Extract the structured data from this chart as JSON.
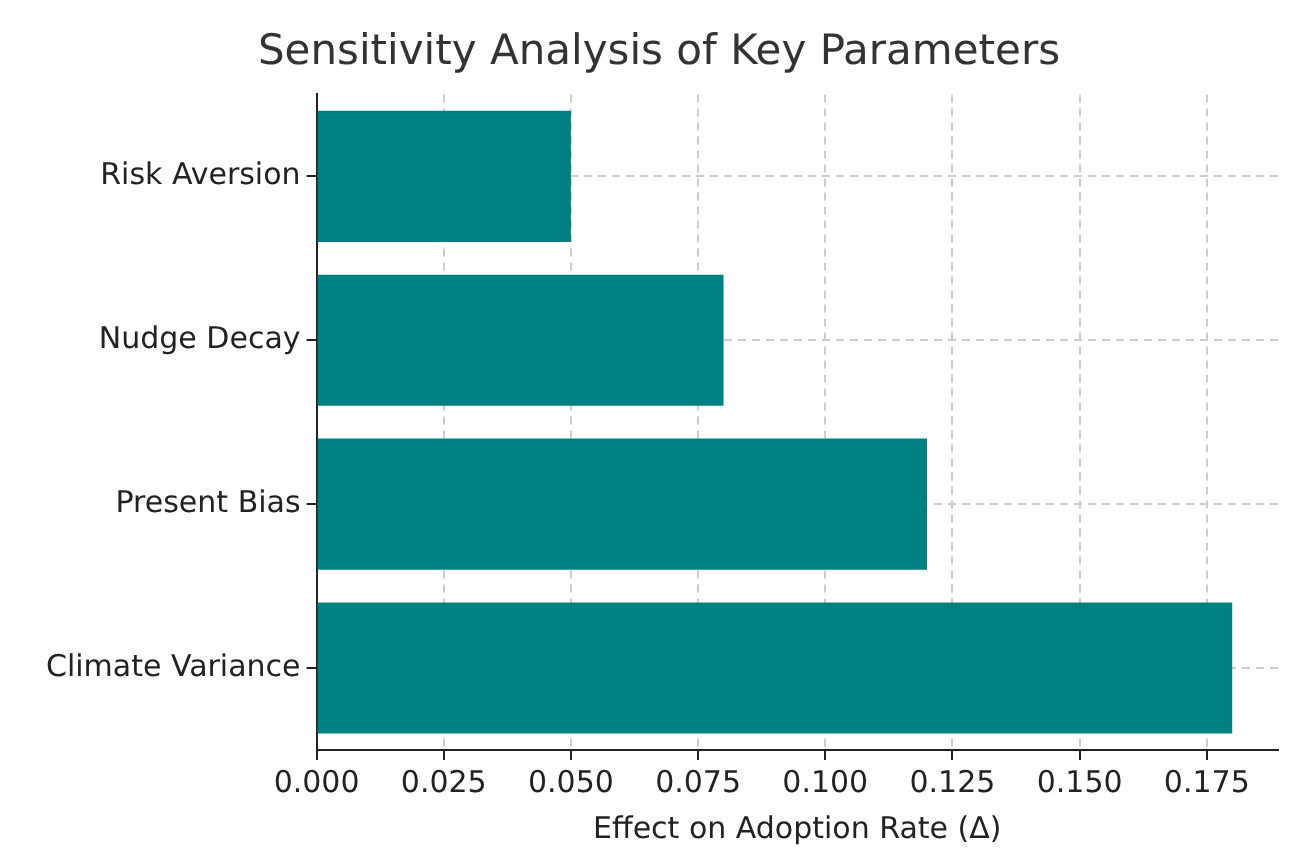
{
  "chart_data": {
    "type": "bar",
    "orientation": "horizontal",
    "title": "Sensitivity Analysis of Key Parameters",
    "xlabel": "Effect on Adoption Rate (Δ)",
    "categories": [
      "Risk Aversion",
      "Nudge Decay",
      "Present Bias",
      "Climate Variance"
    ],
    "values": [
      0.05,
      0.08,
      0.12,
      0.18
    ],
    "color": "#008080",
    "xlim": [
      0,
      0.189
    ],
    "xticks": [
      {
        "value": 0,
        "label": "0.000"
      },
      {
        "value": 0.025,
        "label": "0.025"
      },
      {
        "value": 0.05,
        "label": "0.050"
      },
      {
        "value": 0.075,
        "label": "0.075"
      },
      {
        "value": 0.1,
        "label": "0.100"
      },
      {
        "value": 0.125,
        "label": "0.125"
      },
      {
        "value": 0.15,
        "label": "0.150"
      },
      {
        "value": 0.175,
        "label": "0.175"
      }
    ],
    "grid": true,
    "legend": false
  }
}
